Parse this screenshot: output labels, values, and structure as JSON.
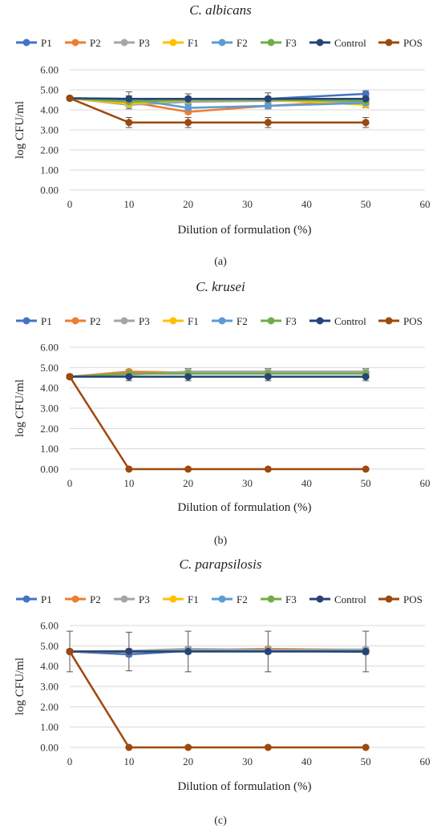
{
  "panels": [
    {
      "caption": "(a)"
    },
    {
      "caption": "(b)"
    },
    {
      "caption": "(c)"
    }
  ],
  "chart_data": [
    {
      "type": "line",
      "title": "C. albicans",
      "xlabel": "Dilution of formulation (%)",
      "ylabel": "log CFU/ml",
      "xlim": [
        0,
        60
      ],
      "ylim": [
        0,
        6
      ],
      "x_ticks": [
        0,
        10,
        20,
        30,
        40,
        50,
        60
      ],
      "y_ticks": [
        "0.00",
        "1.00",
        "2.00",
        "3.00",
        "4.00",
        "5.00",
        "6.00"
      ],
      "grid": true,
      "legend_position": "top",
      "x": [
        0,
        10,
        20,
        33.5,
        50
      ],
      "series": [
        {
          "name": "P1",
          "color": "#4472C4",
          "values": [
            4.58,
            4.45,
            4.55,
            4.55,
            4.8
          ],
          "errors": [
            0.1,
            0.1,
            0.1,
            0.1,
            0.15
          ]
        },
        {
          "name": "P2",
          "color": "#ED7D31",
          "values": [
            4.58,
            4.4,
            3.9,
            4.2,
            4.45
          ],
          "errors": [
            0.1,
            0.15,
            0.1,
            0.1,
            0.1
          ]
        },
        {
          "name": "P3",
          "color": "#A5A5A5",
          "values": [
            4.58,
            4.25,
            4.4,
            4.45,
            4.4
          ],
          "errors": [
            0.1,
            0.2,
            0.15,
            0.1,
            0.1
          ]
        },
        {
          "name": "F1",
          "color": "#FFC000",
          "values": [
            4.58,
            4.3,
            4.5,
            4.5,
            4.25
          ],
          "errors": [
            0.1,
            0.15,
            0.1,
            0.1,
            0.15
          ]
        },
        {
          "name": "F2",
          "color": "#5B9BD5",
          "values": [
            4.58,
            4.55,
            4.1,
            4.2,
            4.35
          ],
          "errors": [
            0.1,
            0.15,
            0.15,
            0.15,
            0.1
          ]
        },
        {
          "name": "F3",
          "color": "#70AD47",
          "values": [
            4.58,
            4.4,
            4.5,
            4.5,
            4.45
          ],
          "errors": [
            0.1,
            0.1,
            0.1,
            0.1,
            0.1
          ]
        },
        {
          "name": "Control",
          "color": "#264478",
          "values": [
            4.58,
            4.55,
            4.55,
            4.55,
            4.55
          ],
          "errors": [
            0.1,
            0.35,
            0.25,
            0.3,
            0.15
          ]
        },
        {
          "name": "POS",
          "color": "#9E480E",
          "values": [
            4.58,
            3.37,
            3.37,
            3.37,
            3.37
          ],
          "errors": [
            0.05,
            0.25,
            0.25,
            0.25,
            0.25
          ]
        }
      ]
    },
    {
      "type": "line",
      "title": "C. krusei",
      "xlabel": "Dilution of formulation (%)",
      "ylabel": "log CFU/ml",
      "xlim": [
        0,
        60
      ],
      "ylim": [
        0,
        6
      ],
      "x_ticks": [
        0,
        10,
        20,
        30,
        40,
        50,
        60
      ],
      "y_ticks": [
        "0.00",
        "1.00",
        "2.00",
        "3.00",
        "4.00",
        "5.00",
        "6.00"
      ],
      "grid": true,
      "legend_position": "top",
      "x": [
        0,
        10,
        20,
        33.5,
        50
      ],
      "series": [
        {
          "name": "P1",
          "color": "#4472C4",
          "values": [
            4.55,
            4.7,
            4.75,
            4.75,
            4.75
          ],
          "errors": [
            0.1,
            0.1,
            0.1,
            0.1,
            0.1
          ]
        },
        {
          "name": "P2",
          "color": "#ED7D31",
          "values": [
            4.55,
            4.8,
            4.75,
            4.75,
            4.75
          ],
          "errors": [
            0.1,
            0.1,
            0.1,
            0.1,
            0.1
          ]
        },
        {
          "name": "P3",
          "color": "#A5A5A5",
          "values": [
            4.55,
            4.65,
            4.8,
            4.8,
            4.8
          ],
          "errors": [
            0.1,
            0.1,
            0.15,
            0.15,
            0.15
          ]
        },
        {
          "name": "F1",
          "color": "#FFC000",
          "values": [
            4.55,
            4.7,
            4.7,
            4.7,
            4.7
          ],
          "errors": [
            0.1,
            0.1,
            0.1,
            0.1,
            0.1
          ]
        },
        {
          "name": "F2",
          "color": "#5B9BD5",
          "values": [
            4.55,
            4.7,
            4.7,
            4.7,
            4.7
          ],
          "errors": [
            0.1,
            0.1,
            0.1,
            0.1,
            0.1
          ]
        },
        {
          "name": "F3",
          "color": "#70AD47",
          "values": [
            4.55,
            4.7,
            4.7,
            4.7,
            4.7
          ],
          "errors": [
            0.1,
            0.1,
            0.1,
            0.1,
            0.1
          ]
        },
        {
          "name": "Control",
          "color": "#264478",
          "values": [
            4.55,
            4.55,
            4.55,
            4.55,
            4.55
          ],
          "errors": [
            0.1,
            0.2,
            0.2,
            0.2,
            0.2
          ]
        },
        {
          "name": "POS",
          "color": "#9E480E",
          "values": [
            4.55,
            0,
            0,
            0,
            0
          ],
          "errors": [
            0.05,
            0,
            0,
            0,
            0
          ]
        }
      ]
    },
    {
      "type": "line",
      "title": "C. parapsilosis",
      "xlabel": "Dilution of formulation (%)",
      "ylabel": "log CFU/ml",
      "xlim": [
        0,
        60
      ],
      "ylim": [
        0,
        6
      ],
      "x_ticks": [
        0,
        10,
        20,
        30,
        40,
        50,
        60
      ],
      "y_ticks": [
        "0.00",
        "1.00",
        "2.00",
        "3.00",
        "4.00",
        "5.00",
        "6.00"
      ],
      "grid": true,
      "legend_position": "top",
      "x": [
        0,
        10,
        20,
        33.5,
        50
      ],
      "series": [
        {
          "name": "P1",
          "color": "#4472C4",
          "values": [
            4.72,
            4.58,
            4.75,
            4.75,
            4.7
          ],
          "errors": [
            0.1,
            0.1,
            0.1,
            0.1,
            0.1
          ]
        },
        {
          "name": "P2",
          "color": "#ED7D31",
          "values": [
            4.72,
            4.7,
            4.8,
            4.85,
            4.8
          ],
          "errors": [
            0.1,
            0.1,
            0.1,
            0.1,
            0.1
          ]
        },
        {
          "name": "P3",
          "color": "#A5A5A5",
          "values": [
            4.72,
            4.75,
            4.85,
            4.8,
            4.82
          ],
          "errors": [
            0.1,
            0.1,
            0.1,
            0.1,
            0.1
          ]
        },
        {
          "name": "F1",
          "color": "#FFC000",
          "values": [
            4.72,
            4.72,
            4.75,
            4.75,
            4.75
          ],
          "errors": [
            0.1,
            0.1,
            0.1,
            0.1,
            0.1
          ]
        },
        {
          "name": "F2",
          "color": "#5B9BD5",
          "values": [
            4.72,
            4.72,
            4.75,
            4.75,
            4.75
          ],
          "errors": [
            0.1,
            0.1,
            0.1,
            0.1,
            0.1
          ]
        },
        {
          "name": "F3",
          "color": "#70AD47",
          "values": [
            4.72,
            4.72,
            4.72,
            4.72,
            4.72
          ],
          "errors": [
            0.1,
            0.1,
            0.1,
            0.1,
            0.1
          ]
        },
        {
          "name": "Control",
          "color": "#264478",
          "values": [
            4.72,
            4.72,
            4.72,
            4.72,
            4.72
          ],
          "errors": [
            1.0,
            0.95,
            1.0,
            1.0,
            1.0
          ]
        },
        {
          "name": "POS",
          "color": "#9E480E",
          "values": [
            4.72,
            0,
            0,
            0,
            0
          ],
          "errors": [
            0.05,
            0,
            0,
            0,
            0
          ]
        }
      ]
    }
  ]
}
